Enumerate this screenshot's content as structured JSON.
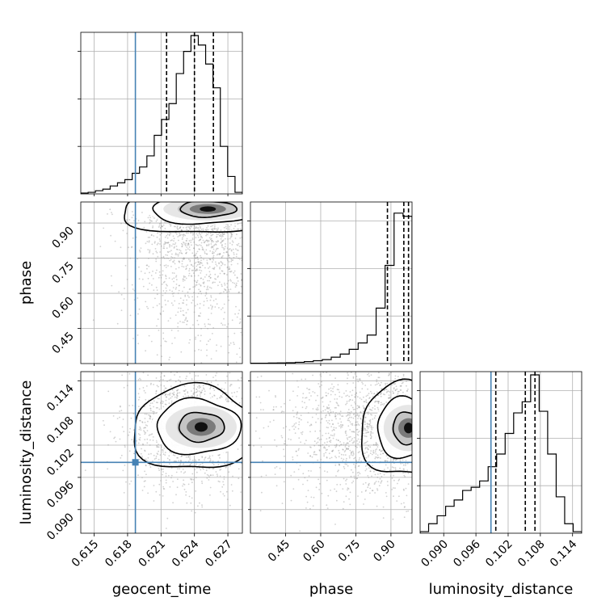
{
  "chart_data": {
    "type": "corner",
    "parameters": [
      "geocent_time",
      "phase",
      "luminosity_distance"
    ],
    "axis_labels": {
      "geocent_time": "geocent_time",
      "phase": "phase",
      "luminosity_distance": "luminosity_distance"
    },
    "ranges": {
      "geocent_time": [
        0.6138,
        0.6283
      ],
      "phase": [
        0.3,
        0.99
      ],
      "luminosity_distance": [
        0.0856,
        0.1157
      ]
    },
    "ticks": {
      "geocent_time": [
        {
          "value": 0.615,
          "label": "0.615"
        },
        {
          "value": 0.618,
          "label": "0.618"
        },
        {
          "value": 0.621,
          "label": "0.621"
        },
        {
          "value": 0.624,
          "label": "0.624"
        },
        {
          "value": 0.627,
          "label": "0.627"
        }
      ],
      "phase": [
        {
          "value": 0.45,
          "label": "0.45"
        },
        {
          "value": 0.6,
          "label": "0.60"
        },
        {
          "value": 0.75,
          "label": "0.75"
        },
        {
          "value": 0.9,
          "label": "0.90"
        }
      ],
      "luminosity_distance": [
        {
          "value": 0.09,
          "label": "0.090"
        },
        {
          "value": 0.096,
          "label": "0.096"
        },
        {
          "value": 0.102,
          "label": "0.102"
        },
        {
          "value": 0.108,
          "label": "0.108"
        },
        {
          "value": 0.114,
          "label": "0.114"
        }
      ]
    },
    "truths": {
      "geocent_time": 0.6187,
      "phase": null,
      "luminosity_distance": 0.0988
    },
    "quantiles": {
      "geocent_time": [
        0.6215,
        0.624,
        0.6257
      ],
      "phase": [
        0.885,
        0.955,
        0.975
      ],
      "luminosity_distance": [
        0.0997,
        0.1052,
        0.107
      ]
    },
    "histograms": {
      "geocent_time": [
        0.005,
        0.01,
        0.02,
        0.03,
        0.05,
        0.07,
        0.09,
        0.13,
        0.17,
        0.24,
        0.37,
        0.47,
        0.57,
        0.76,
        0.9,
        1.0,
        0.94,
        0.82,
        0.67,
        0.3,
        0.11,
        0.01
      ],
      "phase": [
        0.002,
        0.002,
        0.003,
        0.004,
        0.005,
        0.008,
        0.012,
        0.018,
        0.025,
        0.04,
        0.06,
        0.09,
        0.13,
        0.18,
        0.35,
        0.62,
        0.95,
        0.93
      ],
      "luminosity_distance": [
        0.01,
        0.06,
        0.11,
        0.17,
        0.21,
        0.27,
        0.29,
        0.33,
        0.42,
        0.5,
        0.63,
        0.76,
        0.83,
        1.0,
        0.77,
        0.5,
        0.23,
        0.06,
        0.01
      ]
    },
    "density_peaks": {
      "phase_vs_geocent_time": {
        "x": 0.6252,
        "y": 0.96
      },
      "luminosity_distance_vs_geocent_time": {
        "x": 0.6246,
        "y": 0.1054
      },
      "luminosity_distance_vs_phase": {
        "x": 0.975,
        "y": 0.1052
      }
    },
    "grid": true,
    "show_datapoints": true
  }
}
